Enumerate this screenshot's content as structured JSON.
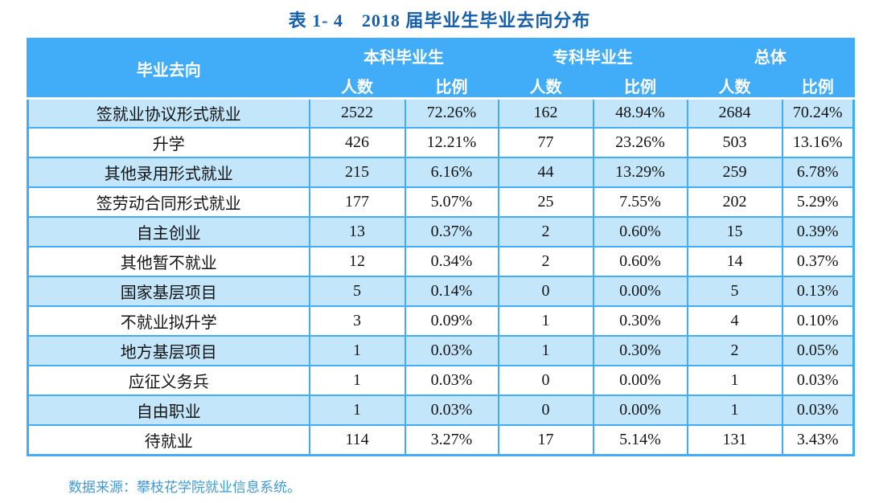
{
  "page": {
    "title": "表 1- 4　2018 届毕业生毕业去向分布",
    "source_note": "数据来源：攀枝花学院就业信息系统。"
  },
  "colors": {
    "header_blue": "#41ACF7",
    "row_light_blue": "#C4E6FB",
    "title_blue": "#1660AB",
    "note_blue": "#3E9BD8"
  },
  "table": {
    "corner_header": "毕业去向",
    "groups": [
      {
        "label": "本科毕业生"
      },
      {
        "label": "专科毕业生"
      },
      {
        "label": "总体"
      }
    ],
    "sub_headers": [
      "人数",
      "比例",
      "人数",
      "比例",
      "人数",
      "比例"
    ],
    "rows": [
      {
        "label": "签就业协议形式就业",
        "values": [
          "2522",
          "72.26%",
          "162",
          "48.94%",
          "2684",
          "70.24%"
        ]
      },
      {
        "label": "升学",
        "values": [
          "426",
          "12.21%",
          "77",
          "23.26%",
          "503",
          "13.16%"
        ]
      },
      {
        "label": "其他录用形式就业",
        "values": [
          "215",
          "6.16%",
          "44",
          "13.29%",
          "259",
          "6.78%"
        ]
      },
      {
        "label": "签劳动合同形式就业",
        "values": [
          "177",
          "5.07%",
          "25",
          "7.55%",
          "202",
          "5.29%"
        ]
      },
      {
        "label": "自主创业",
        "values": [
          "13",
          "0.37%",
          "2",
          "0.60%",
          "15",
          "0.39%"
        ]
      },
      {
        "label": "其他暂不就业",
        "values": [
          "12",
          "0.34%",
          "2",
          "0.60%",
          "14",
          "0.37%"
        ]
      },
      {
        "label": "国家基层项目",
        "values": [
          "5",
          "0.14%",
          "0",
          "0.00%",
          "5",
          "0.13%"
        ]
      },
      {
        "label": "不就业拟升学",
        "values": [
          "3",
          "0.09%",
          "1",
          "0.30%",
          "4",
          "0.10%"
        ]
      },
      {
        "label": "地方基层项目",
        "values": [
          "1",
          "0.03%",
          "1",
          "0.30%",
          "2",
          "0.05%"
        ]
      },
      {
        "label": "应征义务兵",
        "values": [
          "1",
          "0.03%",
          "0",
          "0.00%",
          "1",
          "0.03%"
        ]
      },
      {
        "label": "自由职业",
        "values": [
          "1",
          "0.03%",
          "0",
          "0.00%",
          "1",
          "0.03%"
        ]
      },
      {
        "label": "待就业",
        "values": [
          "114",
          "3.27%",
          "17",
          "5.14%",
          "131",
          "3.43%"
        ]
      }
    ]
  }
}
